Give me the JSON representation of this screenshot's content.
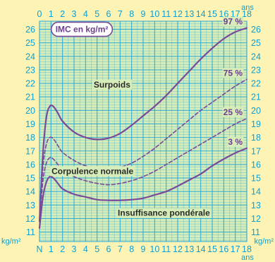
{
  "chart_data": {
    "type": "line",
    "title": "IMC en kg/m²",
    "x_label_top": "ans",
    "x_label_bottom": "ans",
    "y_label_left": "kg/m²",
    "y_label_right": "kg/m²",
    "x_ticks_top": [
      "0",
      "1",
      "2",
      "3",
      "4",
      "5",
      "6",
      "7",
      "8",
      "9",
      "10",
      "11",
      "12",
      "13",
      "14",
      "15",
      "16",
      "17",
      "18"
    ],
    "x_ticks_bottom": [
      "N",
      "1",
      "2",
      "3",
      "4",
      "5",
      "6",
      "7",
      "8",
      "9",
      "10",
      "11",
      "12",
      "13",
      "14",
      "15",
      "16",
      "17",
      "18"
    ],
    "y_ticks": [
      "11",
      "12",
      "13",
      "14",
      "15",
      "16",
      "17",
      "18",
      "19",
      "20",
      "21",
      "22",
      "23",
      "24",
      "25",
      "26"
    ],
    "xlim": [
      0,
      18
    ],
    "ylim": [
      10.3,
      26.6
    ],
    "grid": true,
    "zones": [
      {
        "label": "Surpoids",
        "x": 6.3,
        "y": 21.7
      },
      {
        "label": "Corpulence normale",
        "x": 4.6,
        "y": 15.3
      },
      {
        "label": "Insuffisance pondérale",
        "x": 10.8,
        "y": 12.2
      }
    ],
    "series": [
      {
        "name": "97 %",
        "style": "solid",
        "x": [
          0,
          0.3,
          0.6,
          0.9,
          1.2,
          1.6,
          2,
          3,
          4,
          5,
          6,
          7,
          8,
          9,
          10,
          11,
          12,
          13,
          14,
          15,
          16,
          17,
          18
        ],
        "y": [
          11.8,
          16.8,
          19.5,
          20.3,
          20.3,
          19.8,
          19.2,
          18.4,
          18.0,
          17.85,
          17.95,
          18.3,
          18.9,
          19.6,
          20.3,
          21.1,
          22.0,
          22.9,
          23.8,
          24.6,
          25.3,
          25.8,
          26.1
        ]
      },
      {
        "name": "75 %",
        "style": "dashed",
        "x": [
          0,
          0.3,
          0.6,
          0.9,
          1.2,
          1.6,
          2,
          3,
          4,
          5,
          6,
          7,
          8,
          9,
          10,
          11,
          12,
          13,
          14,
          15,
          16,
          17,
          18
        ],
        "y": [
          11.8,
          15.8,
          17.5,
          18.0,
          17.9,
          17.4,
          16.9,
          16.3,
          15.9,
          15.7,
          15.7,
          15.8,
          16.1,
          16.6,
          17.2,
          17.9,
          18.6,
          19.3,
          20.0,
          20.6,
          21.2,
          21.8,
          22.3
        ]
      },
      {
        "name": "25 %",
        "style": "dashed",
        "x": [
          0,
          0.3,
          0.6,
          0.9,
          1.2,
          1.6,
          2,
          3,
          4,
          5,
          6,
          7,
          8,
          9,
          10,
          11,
          12,
          13,
          14,
          15,
          16,
          17,
          18
        ],
        "y": [
          11.8,
          14.8,
          16.1,
          16.5,
          16.4,
          16.0,
          15.6,
          15.1,
          14.8,
          14.6,
          14.5,
          14.6,
          14.8,
          15.1,
          15.5,
          16.0,
          16.5,
          17.0,
          17.5,
          18.0,
          18.5,
          19.0,
          19.4
        ]
      },
      {
        "name": "3 %",
        "style": "solid",
        "x": [
          0,
          0.3,
          0.6,
          0.9,
          1.2,
          1.6,
          2,
          3,
          4,
          5,
          6,
          7,
          8,
          9,
          10,
          11,
          12,
          13,
          14,
          15,
          16,
          17,
          18
        ],
        "y": [
          11.3,
          13.6,
          14.7,
          15.1,
          15.0,
          14.6,
          14.2,
          13.8,
          13.6,
          13.4,
          13.35,
          13.35,
          13.4,
          13.5,
          13.75,
          14.0,
          14.4,
          14.85,
          15.3,
          15.9,
          16.4,
          16.85,
          17.2
        ]
      }
    ],
    "colors": {
      "background": "#fdf3b4",
      "plot_area": "#d6edb9",
      "grid": "#2aa7d6",
      "curve": "#7a4a98",
      "axis_text": "#0a9fd6"
    }
  }
}
